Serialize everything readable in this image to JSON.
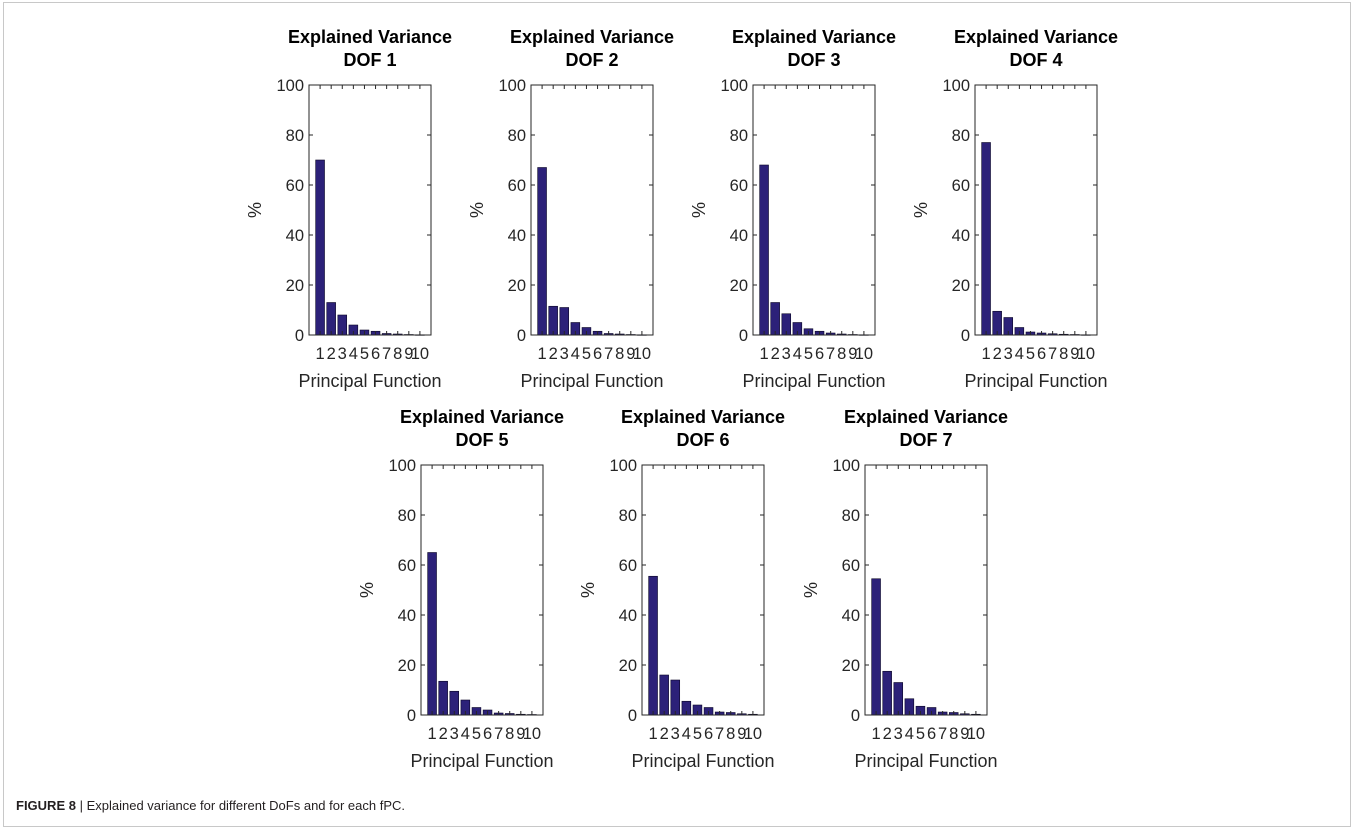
{
  "figure": {
    "caption_label": "FIGURE 8",
    "caption_separator": " | ",
    "caption_text": "Explained variance for different DoFs and for each fPC."
  },
  "style": {
    "bar_color": "#2c2179",
    "bar_edge": "#0c0826",
    "axis_color": "#262626"
  },
  "chart_data": [
    {
      "type": "bar",
      "title": [
        "Explained Variance",
        "DOF 1"
      ],
      "xlabel": "Principal Function",
      "ylabel": "%",
      "categories": [
        "1",
        "2",
        "3",
        "4",
        "5",
        "6",
        "7",
        "8",
        "9",
        "10"
      ],
      "values": [
        70,
        13,
        8,
        4,
        2,
        1.5,
        0.6,
        0.4,
        0.2,
        0.1
      ],
      "ylim": [
        0,
        100
      ],
      "yticks": [
        0,
        20,
        40,
        60,
        80,
        100
      ],
      "grid": false
    },
    {
      "type": "bar",
      "title": [
        "Explained Variance",
        "DOF 2"
      ],
      "xlabel": "Principal Function",
      "ylabel": "%",
      "categories": [
        "1",
        "2",
        "3",
        "4",
        "5",
        "6",
        "7",
        "8",
        "9",
        "10"
      ],
      "values": [
        67,
        11.5,
        11,
        5,
        3,
        1.5,
        0.6,
        0.4,
        0.2,
        0.1
      ],
      "ylim": [
        0,
        100
      ],
      "yticks": [
        0,
        20,
        40,
        60,
        80,
        100
      ],
      "grid": false
    },
    {
      "type": "bar",
      "title": [
        "Explained Variance",
        "DOF 3"
      ],
      "xlabel": "Principal Function",
      "ylabel": "%",
      "categories": [
        "1",
        "2",
        "3",
        "4",
        "5",
        "6",
        "7",
        "8",
        "9",
        "10"
      ],
      "values": [
        68,
        13,
        8.5,
        5,
        2.5,
        1.5,
        0.8,
        0.4,
        0.2,
        0.1
      ],
      "ylim": [
        0,
        100
      ],
      "yticks": [
        0,
        20,
        40,
        60,
        80,
        100
      ],
      "grid": false
    },
    {
      "type": "bar",
      "title": [
        "Explained Variance",
        "DOF 4"
      ],
      "xlabel": "Principal Function",
      "ylabel": "%",
      "categories": [
        "1",
        "2",
        "3",
        "4",
        "5",
        "6",
        "7",
        "8",
        "9",
        "10"
      ],
      "values": [
        77,
        9.5,
        7,
        3,
        1.2,
        0.8,
        0.5,
        0.3,
        0.2,
        0.1
      ],
      "ylim": [
        0,
        100
      ],
      "yticks": [
        0,
        20,
        40,
        60,
        80,
        100
      ],
      "grid": false
    },
    {
      "type": "bar",
      "title": [
        "Explained Variance",
        "DOF 5"
      ],
      "xlabel": "Principal Function",
      "ylabel": "%",
      "categories": [
        "1",
        "2",
        "3",
        "4",
        "5",
        "6",
        "7",
        "8",
        "9",
        "10"
      ],
      "values": [
        65,
        13.5,
        9.5,
        6,
        3,
        2,
        0.8,
        0.6,
        0.3,
        0.2
      ],
      "ylim": [
        0,
        100
      ],
      "yticks": [
        0,
        20,
        40,
        60,
        80,
        100
      ],
      "grid": false
    },
    {
      "type": "bar",
      "title": [
        "Explained Variance",
        "DOF 6"
      ],
      "xlabel": "Principal Function",
      "ylabel": "%",
      "categories": [
        "1",
        "2",
        "3",
        "4",
        "5",
        "6",
        "7",
        "8",
        "9",
        "10"
      ],
      "values": [
        55.5,
        16,
        14,
        5.5,
        4,
        3,
        1.2,
        1,
        0.5,
        0.3
      ],
      "ylim": [
        0,
        100
      ],
      "yticks": [
        0,
        20,
        40,
        60,
        80,
        100
      ],
      "grid": false
    },
    {
      "type": "bar",
      "title": [
        "Explained Variance",
        "DOF 7"
      ],
      "xlabel": "Principal Function",
      "ylabel": "%",
      "categories": [
        "1",
        "2",
        "3",
        "4",
        "5",
        "6",
        "7",
        "8",
        "9",
        "10"
      ],
      "values": [
        54.5,
        17.5,
        13,
        6.5,
        3.5,
        3,
        1.2,
        1,
        0.5,
        0.3
      ],
      "ylim": [
        0,
        100
      ],
      "yticks": [
        0,
        20,
        40,
        60,
        80,
        100
      ],
      "grid": false
    }
  ]
}
